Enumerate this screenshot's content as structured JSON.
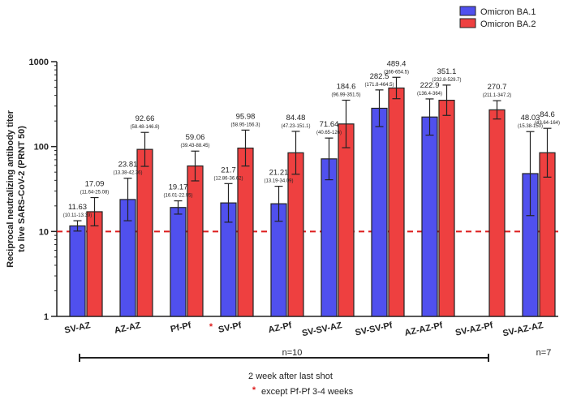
{
  "chart_data": {
    "type": "bar",
    "ylabel_line1": "Reciprocal neutralizing antibody titer",
    "ylabel_line2": "to live SARS-CoV-2 (PRNT 50)",
    "yscale": "log",
    "ylim": [
      1,
      1000
    ],
    "yticks": [
      "1",
      "10",
      "100",
      "1000"
    ],
    "reference_line": {
      "value": 10,
      "color": "#dd1c1c",
      "style": "dashed"
    },
    "legend_position": "top-right",
    "series": [
      {
        "name": "Omicron BA.1",
        "color": "#5050ee"
      },
      {
        "name": "Omicron BA.2",
        "color": "#ee4040"
      }
    ],
    "groups": [
      {
        "label": "SV-AZ",
        "star": false,
        "n": "",
        "bars": [
          {
            "value": 11.63,
            "label": "11.63",
            "ci": "(10.11-13.39)",
            "lo": 10.11,
            "hi": 13.39
          },
          {
            "value": 17.09,
            "label": "17.09",
            "ci": "(11.64-25.08)",
            "lo": 11.64,
            "hi": 25.08
          }
        ]
      },
      {
        "label": "AZ-AZ",
        "star": false,
        "n": "",
        "bars": [
          {
            "value": 23.81,
            "label": "23.81",
            "ci": "(13.38-42.36)",
            "lo": 13.38,
            "hi": 42.36
          },
          {
            "value": 92.66,
            "label": "92.66",
            "ci": "(58.48-146.8)",
            "lo": 58.48,
            "hi": 146.8
          }
        ]
      },
      {
        "label": "Pf-Pf",
        "star": true,
        "n": "",
        "bars": [
          {
            "value": 19.17,
            "label": "19.17",
            "ci": "(16.01-22.95)",
            "lo": 16.01,
            "hi": 22.95
          },
          {
            "value": 59.06,
            "label": "59.06",
            "ci": "(39.43-88.45)",
            "lo": 39.43,
            "hi": 88.45
          }
        ]
      },
      {
        "label": "SV-Pf",
        "star": false,
        "n": "",
        "bars": [
          {
            "value": 21.7,
            "label": "21.7",
            "ci": "(12.86-36.62)",
            "lo": 12.86,
            "hi": 36.62
          },
          {
            "value": 95.98,
            "label": "95.98",
            "ci": "(58.95-156.3)",
            "lo": 58.95,
            "hi": 156.3
          }
        ]
      },
      {
        "label": "AZ-Pf",
        "star": false,
        "n": "n=10",
        "bars": [
          {
            "value": 21.21,
            "label": "21.21",
            "ci": "(13.19-34.09)",
            "lo": 13.19,
            "hi": 34.09
          },
          {
            "value": 84.48,
            "label": "84.48",
            "ci": "(47.23-151.1)",
            "lo": 47.23,
            "hi": 151.1
          }
        ]
      },
      {
        "label": "SV-SV-AZ",
        "star": false,
        "n": "",
        "bars": [
          {
            "value": 71.64,
            "label": "71.64",
            "ci": "(40.65-126)",
            "lo": 40.65,
            "hi": 126
          },
          {
            "value": 184.6,
            "label": "184.6",
            "ci": "(96.99-351.5)",
            "lo": 96.99,
            "hi": 351.5
          }
        ]
      },
      {
        "label": "SV-SV-Pf",
        "star": false,
        "n": "",
        "bars": [
          {
            "value": 282.5,
            "label": "282.5",
            "ci": "(171.8-464.5)",
            "lo": 171.8,
            "hi": 464.5
          },
          {
            "value": 489.4,
            "label": "489.4",
            "ci": "(366-654.5)",
            "lo": 366,
            "hi": 654.5
          }
        ]
      },
      {
        "label": "AZ-AZ-Pf",
        "star": false,
        "n": "",
        "bars": [
          {
            "value": 222.9,
            "label": "222.9",
            "ci": "(136.4-364)",
            "lo": 136.4,
            "hi": 364
          },
          {
            "value": 351.1,
            "label": "351.1",
            "ci": "(232.8-529.7)",
            "lo": 232.8,
            "hi": 529.7
          }
        ]
      },
      {
        "label": "SV-AZ-Pf",
        "star": false,
        "n": "",
        "bars": [
          null,
          {
            "value": 270.7,
            "label": "270.7",
            "ci": "(211.1-347.2)",
            "lo": 211.1,
            "hi": 347.2
          }
        ]
      },
      {
        "label": "SV-AZ-AZ",
        "star": false,
        "n": "n=7",
        "bars": [
          {
            "value": 48.03,
            "label": "48.03",
            "ci": "(15.38-150)",
            "lo": 15.38,
            "hi": 150
          },
          {
            "value": 84.6,
            "label": "84.6",
            "ci": "(43.64-164)",
            "lo": 43.64,
            "hi": 164
          }
        ]
      }
    ],
    "footer": {
      "bracket_label": "2 week after last shot",
      "footnote_star": "*",
      "footnote_text": "except Pf-Pf 3-4 weeks"
    }
  }
}
